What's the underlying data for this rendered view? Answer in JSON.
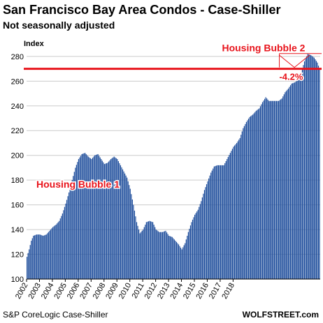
{
  "title": "San Francisco Bay Area Condos - Case-Shiller",
  "subtitle": "Not seasonally adjusted",
  "source": "S&P CoreLogic Case-Shiller",
  "brand": "WOLFSTREET.com",
  "colors": {
    "bar": "#1f4e9c",
    "accent": "#e8141c",
    "grid": "#cccccc"
  },
  "chart_data": {
    "type": "bar",
    "ylabel": "Index",
    "ylim": [
      100,
      285
    ],
    "yticks": [
      100,
      120,
      140,
      160,
      180,
      200,
      220,
      240,
      260,
      280
    ],
    "xticks": [
      "2002",
      "2003",
      "2004",
      "2005",
      "2006",
      "2007",
      "2008",
      "2009",
      "2010",
      "2011",
      "2012",
      "2013",
      "2014",
      "2015",
      "2016",
      "2017",
      "2018"
    ],
    "grid": true,
    "reference_line": 270,
    "annotations": {
      "bubble1": "Housing Bubble 1",
      "bubble2": "Housing Bubble 2",
      "change": "-4.2%"
    },
    "anchors": [
      [
        0,
        118
      ],
      [
        2,
        124
      ],
      [
        4,
        131
      ],
      [
        6,
        135
      ],
      [
        9,
        136
      ],
      [
        12,
        136
      ],
      [
        15,
        135
      ],
      [
        18,
        136
      ],
      [
        21,
        139
      ],
      [
        24,
        142
      ],
      [
        27,
        144
      ],
      [
        30,
        147
      ],
      [
        33,
        153
      ],
      [
        36,
        161
      ],
      [
        39,
        170
      ],
      [
        42,
        180
      ],
      [
        45,
        190
      ],
      [
        48,
        197
      ],
      [
        51,
        201
      ],
      [
        54,
        202
      ],
      [
        57,
        199
      ],
      [
        60,
        197
      ],
      [
        63,
        200
      ],
      [
        66,
        201
      ],
      [
        69,
        197
      ],
      [
        72,
        193
      ],
      [
        75,
        194
      ],
      [
        78,
        197
      ],
      [
        81,
        199
      ],
      [
        84,
        197
      ],
      [
        87,
        192
      ],
      [
        90,
        187
      ],
      [
        93,
        182
      ],
      [
        96,
        173
      ],
      [
        99,
        160
      ],
      [
        102,
        146
      ],
      [
        105,
        137
      ],
      [
        108,
        140
      ],
      [
        111,
        146
      ],
      [
        114,
        147
      ],
      [
        117,
        146
      ],
      [
        120,
        140
      ],
      [
        123,
        138
      ],
      [
        126,
        138
      ],
      [
        129,
        139
      ],
      [
        132,
        135
      ],
      [
        135,
        134
      ],
      [
        138,
        131
      ],
      [
        141,
        128
      ],
      [
        144,
        124
      ],
      [
        147,
        129
      ],
      [
        150,
        138
      ],
      [
        153,
        146
      ],
      [
        156,
        152
      ],
      [
        159,
        156
      ],
      [
        162,
        163
      ],
      [
        165,
        172
      ],
      [
        168,
        179
      ],
      [
        171,
        186
      ],
      [
        174,
        191
      ],
      [
        177,
        192
      ],
      [
        180,
        192
      ],
      [
        183,
        192
      ],
      [
        186,
        197
      ],
      [
        189,
        202
      ],
      [
        192,
        207
      ],
      [
        195,
        210
      ],
      [
        198,
        214
      ],
      [
        201,
        222
      ],
      [
        204,
        227
      ],
      [
        207,
        231
      ],
      [
        210,
        233
      ],
      [
        213,
        236
      ],
      [
        216,
        238
      ],
      [
        219,
        243
      ],
      [
        222,
        247
      ],
      [
        225,
        244
      ],
      [
        228,
        244
      ],
      [
        231,
        244
      ],
      [
        234,
        244
      ],
      [
        237,
        246
      ],
      [
        240,
        251
      ],
      [
        243,
        254
      ],
      [
        246,
        258
      ],
      [
        249,
        259
      ],
      [
        252,
        261
      ],
      [
        255,
        267
      ],
      [
        258,
        276
      ],
      [
        261,
        282
      ],
      [
        264,
        281
      ],
      [
        267,
        279
      ],
      [
        270,
        275
      ],
      [
        272,
        270
      ]
    ]
  }
}
